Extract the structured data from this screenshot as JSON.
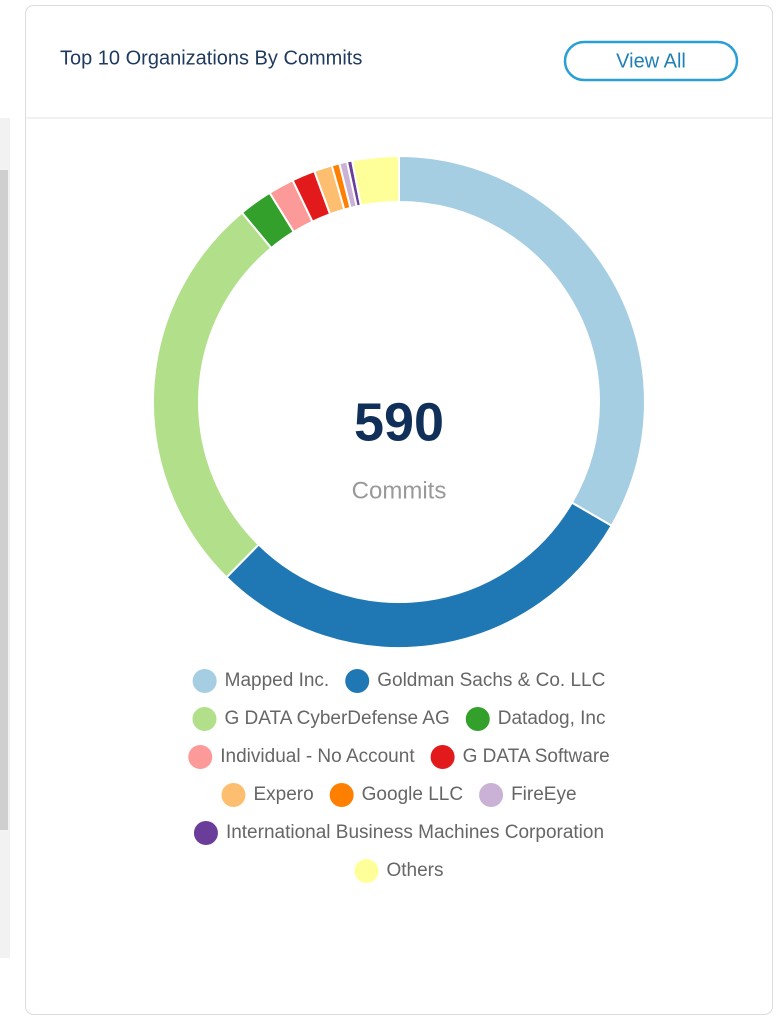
{
  "chart_data": {
    "type": "donut",
    "title": "Top 10 Organizations By Commits",
    "button": "View All",
    "total": 590,
    "total_label": "Commits",
    "categories": [
      "Mapped Inc.",
      "Goldman Sachs & Co. LLC",
      "G DATA CyberDefense AG",
      "Datadog, Inc",
      "Individual - No Account",
      "G DATA Software",
      "Expero",
      "Google LLC",
      "FireEye",
      "International Business Machines Corporation",
      "Others"
    ],
    "values": [
      197,
      171,
      157,
      13,
      10,
      9,
      7,
      3,
      3,
      2,
      18
    ],
    "colors": [
      "#a6cee3",
      "#1f78b4",
      "#b2df8a",
      "#33a02c",
      "#fb9a99",
      "#e31a1c",
      "#fdbf6f",
      "#ff7f00",
      "#cab2d6",
      "#6a3d9a",
      "#ffff99"
    ]
  }
}
